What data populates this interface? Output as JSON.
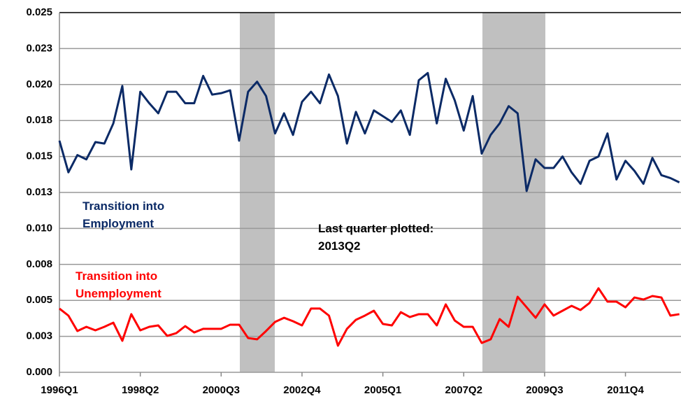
{
  "chart_data": {
    "type": "line",
    "categories": [
      "1996Q1",
      null,
      null,
      null,
      null,
      null,
      null,
      null,
      null,
      "1998Q2",
      null,
      null,
      null,
      null,
      null,
      null,
      null,
      null,
      "2000Q3",
      null,
      null,
      null,
      null,
      null,
      null,
      null,
      null,
      "2002Q4",
      null,
      null,
      null,
      null,
      null,
      null,
      null,
      null,
      "2005Q1",
      null,
      null,
      null,
      null,
      null,
      null,
      null,
      null,
      "2007Q2",
      null,
      null,
      null,
      null,
      null,
      null,
      null,
      null,
      "2009Q3",
      null,
      null,
      null,
      null,
      null,
      null,
      null,
      null,
      "2011Q4",
      null,
      null,
      null,
      null,
      null,
      null
    ],
    "series": [
      {
        "name": "Transition into Employment",
        "color": "#0b2a66",
        "values": [
          0.0161,
          0.0139,
          0.0151,
          0.0148,
          0.016,
          0.0159,
          0.0173,
          0.0199,
          0.0141,
          0.0195,
          0.0187,
          0.018,
          0.0195,
          0.0195,
          0.0187,
          0.0187,
          0.0206,
          0.0193,
          0.0194,
          0.0196,
          0.0161,
          0.0195,
          0.0202,
          0.0192,
          0.0166,
          0.018,
          0.0165,
          0.0188,
          0.0195,
          0.0187,
          0.0207,
          0.0192,
          0.0159,
          0.0181,
          0.0166,
          0.0182,
          0.0178,
          0.0174,
          0.0182,
          0.0165,
          0.0203,
          0.0208,
          0.0173,
          0.0204,
          0.0189,
          0.0168,
          0.0192,
          0.0152,
          0.0165,
          0.0173,
          0.0185,
          0.018,
          0.0126,
          0.0148,
          0.0142,
          0.0142,
          0.015,
          0.0139,
          0.0131,
          0.0147,
          0.015,
          0.0166,
          0.0134,
          0.0147,
          0.014,
          0.0131,
          0.0149,
          0.0137,
          0.0135,
          0.0132
        ]
      },
      {
        "name": "Transition into Unemployment",
        "color": "#ff0000",
        "values": [
          0.00443,
          0.00394,
          0.00287,
          0.00316,
          0.00292,
          0.00316,
          0.00345,
          0.00219,
          0.00404,
          0.00292,
          0.00316,
          0.00326,
          0.00253,
          0.00272,
          0.00321,
          0.00277,
          0.00302,
          0.00302,
          0.00302,
          0.00331,
          0.00331,
          0.00238,
          0.00229,
          0.00287,
          0.0035,
          0.00379,
          0.00355,
          0.00326,
          0.00443,
          0.00443,
          0.00394,
          0.00185,
          0.00302,
          0.00365,
          0.00394,
          0.00428,
          0.00336,
          0.00326,
          0.00418,
          0.00384,
          0.00404,
          0.00404,
          0.00326,
          0.00472,
          0.0036,
          0.00316,
          0.00316,
          0.00204,
          0.00229,
          0.0037,
          0.00316,
          0.00525,
          0.00452,
          0.00379,
          0.00472,
          0.00394,
          0.00428,
          0.00462,
          0.00433,
          0.00482,
          0.00584,
          0.00491,
          0.00491,
          0.00452,
          0.0052,
          0.00506,
          0.0053,
          0.0052,
          0.00394,
          0.00404
        ]
      }
    ],
    "annotation": "Last quarter plotted: 2013Q2",
    "ylim": [
      0,
      0.025
    ],
    "yticks": [
      {
        "value": 0,
        "label": "0.000"
      },
      {
        "value": 0.0025,
        "label": "0.003"
      },
      {
        "value": 0.005,
        "label": "0.005"
      },
      {
        "value": 0.0075,
        "label": "0.008"
      },
      {
        "value": 0.01,
        "label": "0.010"
      },
      {
        "value": 0.0125,
        "label": "0.013"
      },
      {
        "value": 0.015,
        "label": "0.015"
      },
      {
        "value": 0.0175,
        "label": "0.018"
      },
      {
        "value": 0.02,
        "label": "0.020"
      },
      {
        "value": 0.0225,
        "label": "0.023"
      },
      {
        "value": 0.025,
        "label": "0.025"
      }
    ],
    "grid": true
  }
}
